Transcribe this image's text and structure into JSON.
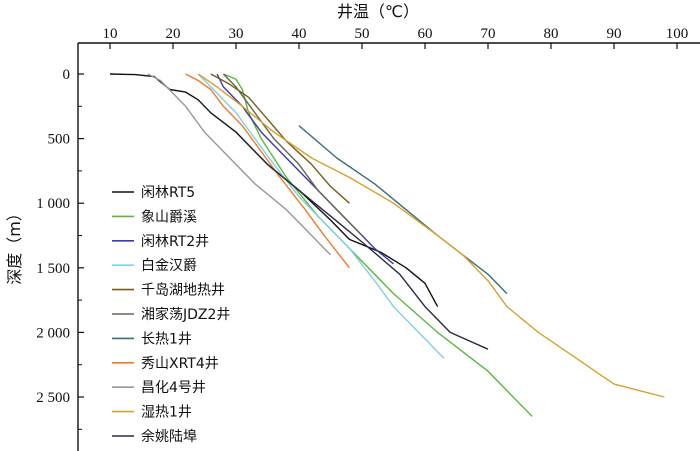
{
  "chart_data": {
    "type": "line",
    "xlabel": "井温（℃）",
    "ylabel": "深度（m）",
    "xlim": [
      10,
      100
    ],
    "ylim": [
      2900,
      0
    ],
    "x_axis_position": "top",
    "y_axis_inverted": true,
    "xticks": [
      {
        "value": 10,
        "label": "10"
      },
      {
        "value": 20,
        "label": "20"
      },
      {
        "value": 30,
        "label": "30"
      },
      {
        "value": 40,
        "label": "40"
      },
      {
        "value": 50,
        "label": "50"
      },
      {
        "value": 60,
        "label": "60"
      },
      {
        "value": 70,
        "label": "70"
      },
      {
        "value": 80,
        "label": "80"
      },
      {
        "value": 90,
        "label": "90"
      },
      {
        "value": 100,
        "label": "100"
      }
    ],
    "yticks": [
      {
        "value": 0,
        "label": "0"
      },
      {
        "value": 500,
        "label": "500"
      },
      {
        "value": 1000,
        "label": "1 000"
      },
      {
        "value": 1500,
        "label": "1 500"
      },
      {
        "value": 2000,
        "label": "2 000"
      },
      {
        "value": 2500,
        "label": "2 500"
      }
    ],
    "grid": false,
    "legend_position": "bottom-left",
    "series": [
      {
        "name": "闲林RT5",
        "color": "#111111",
        "points": [
          [
            10,
            0
          ],
          [
            14,
            5
          ],
          [
            17,
            20
          ],
          [
            18.5,
            80
          ],
          [
            19.5,
            120
          ],
          [
            22,
            140
          ],
          [
            24,
            200
          ],
          [
            26,
            300
          ],
          [
            30,
            450
          ],
          [
            35,
            700
          ],
          [
            40,
            900
          ],
          [
            45,
            1130
          ],
          [
            48,
            1280
          ],
          [
            53,
            1380
          ],
          [
            57,
            1500
          ],
          [
            60,
            1620
          ],
          [
            62,
            1800
          ]
        ]
      },
      {
        "name": "象山爵溪",
        "color": "#5cb83c",
        "points": [
          [
            28,
            0
          ],
          [
            30,
            40
          ],
          [
            31,
            120
          ],
          [
            32,
            300
          ],
          [
            34,
            500
          ],
          [
            38,
            800
          ],
          [
            43,
            1100
          ],
          [
            48,
            1350
          ],
          [
            55,
            1700
          ],
          [
            62,
            2000
          ],
          [
            70,
            2300
          ],
          [
            77,
            2650
          ]
        ]
      },
      {
        "name": "闲林RT2井",
        "color": "#3b3ba8",
        "points": [
          [
            27,
            0
          ],
          [
            28,
            100
          ],
          [
            31,
            250
          ],
          [
            34,
            450
          ],
          [
            38,
            650
          ],
          [
            42,
            850
          ],
          [
            46,
            1050
          ],
          [
            49,
            1200
          ],
          [
            52,
            1350
          ],
          [
            55,
            1470
          ]
        ]
      },
      {
        "name": "白金汉爵",
        "color": "#7fd0e8",
        "points": [
          [
            24,
            0
          ],
          [
            26,
            100
          ],
          [
            30,
            300
          ],
          [
            33,
            500
          ],
          [
            36,
            700
          ],
          [
            40,
            950
          ],
          [
            44,
            1150
          ],
          [
            48,
            1350
          ],
          [
            52,
            1600
          ],
          [
            55,
            1800
          ],
          [
            60,
            2050
          ],
          [
            63,
            2200
          ]
        ]
      },
      {
        "name": "千岛湖地热井",
        "color": "#7a5a1a",
        "points": [
          [
            26,
            0
          ],
          [
            29,
            80
          ],
          [
            32,
            180
          ],
          [
            35,
            350
          ],
          [
            38,
            520
          ],
          [
            42,
            700
          ],
          [
            45,
            870
          ],
          [
            48,
            1000
          ]
        ]
      },
      {
        "name": "湘家荡JDZ2井",
        "color": "#666655",
        "points": [
          [
            28,
            0
          ],
          [
            30,
            100
          ],
          [
            33,
            300
          ],
          [
            36,
            500
          ],
          [
            40,
            700
          ],
          [
            43,
            900
          ],
          [
            47,
            1100
          ],
          [
            50,
            1250
          ]
        ]
      },
      {
        "name": "长热1井",
        "color": "#3a6e7a",
        "points": [
          [
            40,
            400
          ],
          [
            46,
            650
          ],
          [
            52,
            850
          ],
          [
            57,
            1050
          ],
          [
            62,
            1250
          ],
          [
            66,
            1400
          ],
          [
            70,
            1550
          ],
          [
            73,
            1700
          ]
        ]
      },
      {
        "name": "秀山XRT4井",
        "color": "#f07a2a",
        "points": [
          [
            22,
            0
          ],
          [
            24,
            50
          ],
          [
            26,
            120
          ],
          [
            28,
            250
          ],
          [
            31,
            400
          ],
          [
            34,
            600
          ],
          [
            37,
            800
          ],
          [
            41,
            1050
          ],
          [
            44,
            1250
          ],
          [
            48,
            1500
          ]
        ]
      },
      {
        "name": "昌化4号井",
        "color": "#999999",
        "points": [
          [
            16,
            0
          ],
          [
            18,
            50
          ],
          [
            20,
            150
          ],
          [
            22,
            250
          ],
          [
            25,
            450
          ],
          [
            29,
            650
          ],
          [
            33,
            850
          ],
          [
            38,
            1050
          ],
          [
            41,
            1200
          ],
          [
            45,
            1400
          ]
        ]
      },
      {
        "name": "湿热1井",
        "color": "#d9a030",
        "points": [
          [
            24,
            0
          ],
          [
            27,
            100
          ],
          [
            31,
            250
          ],
          [
            36,
            450
          ],
          [
            42,
            650
          ],
          [
            48,
            800
          ],
          [
            55,
            1000
          ],
          [
            62,
            1250
          ],
          [
            66,
            1400
          ],
          [
            70,
            1600
          ],
          [
            73,
            1800
          ],
          [
            78,
            2000
          ],
          [
            84,
            2200
          ],
          [
            90,
            2400
          ],
          [
            98,
            2500
          ]
        ]
      },
      {
        "name": "余姚陆埠",
        "color": "#2a2a44",
        "points": [
          [
            31,
            500
          ],
          [
            35,
            700
          ],
          [
            40,
            900
          ],
          [
            45,
            1100
          ],
          [
            50,
            1300
          ],
          [
            56,
            1550
          ],
          [
            60,
            1800
          ],
          [
            64,
            2000
          ],
          [
            70,
            2130
          ]
        ]
      }
    ]
  }
}
